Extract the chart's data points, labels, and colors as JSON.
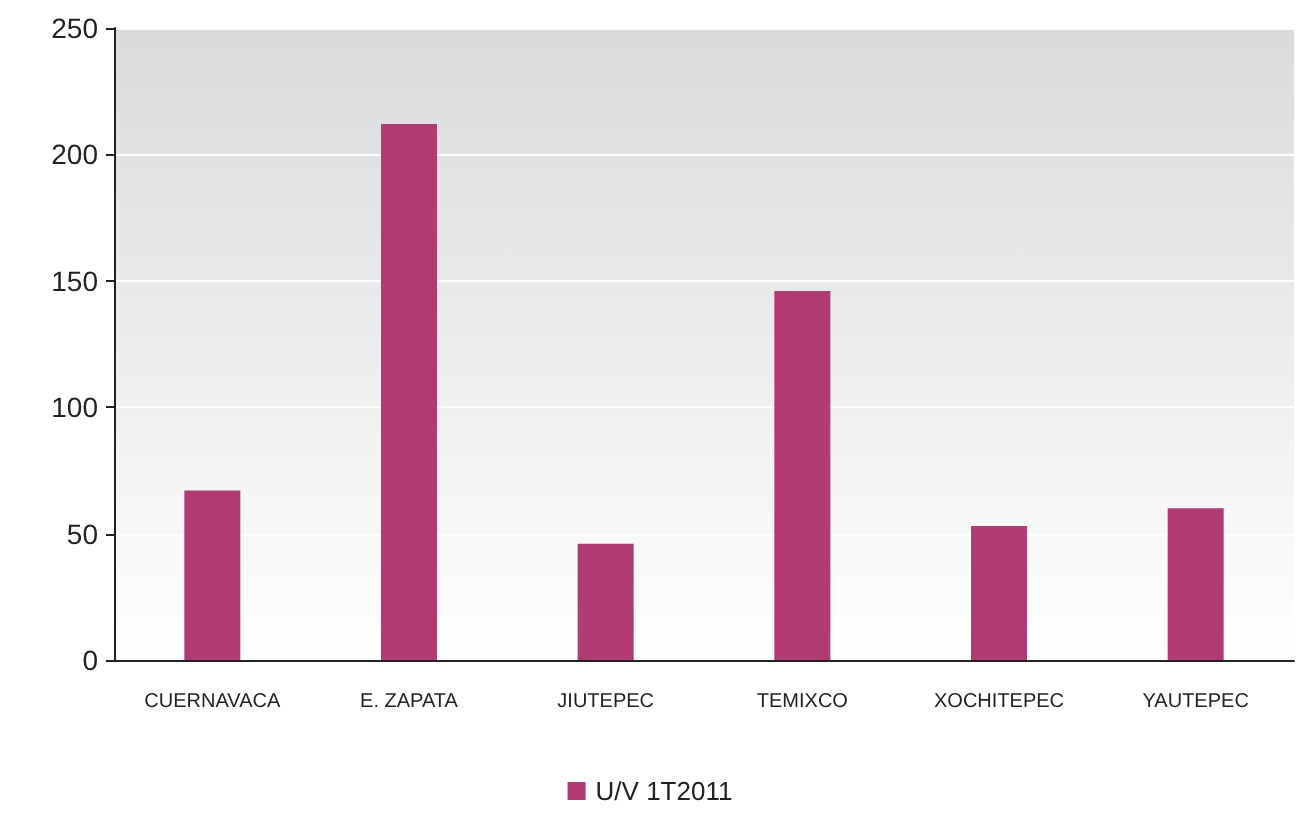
{
  "chart_data": {
    "type": "bar",
    "categories": [
      "CUERNAVACA",
      "E. ZAPATA",
      "JIUTEPEC",
      "TEMIXCO",
      "XOCHITEPEC",
      "YAUTEPEC"
    ],
    "series": [
      {
        "name": "U/V 1T2011",
        "color": "#b03a72",
        "values": [
          67,
          212,
          46,
          146,
          53,
          60
        ]
      }
    ],
    "ylim": [
      0,
      250
    ],
    "yticks": [
      0,
      50,
      100,
      150,
      200,
      250
    ],
    "grid": "y",
    "legend": "bottom"
  }
}
